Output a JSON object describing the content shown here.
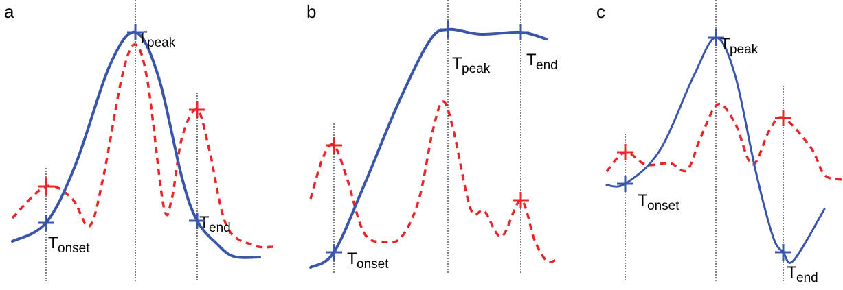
{
  "panels": [
    {
      "label": "a",
      "markers": [
        {
          "symbol": "T",
          "subscript": "onset"
        },
        {
          "symbol": "T",
          "subscript": "peak"
        },
        {
          "symbol": "T",
          "subscript": "end"
        }
      ]
    },
    {
      "label": "b",
      "markers": [
        {
          "symbol": "T",
          "subscript": "onset"
        },
        {
          "symbol": "T",
          "subscript": "peak"
        },
        {
          "symbol": "T",
          "subscript": "end"
        }
      ]
    },
    {
      "label": "c",
      "markers": [
        {
          "symbol": "T",
          "subscript": "onset"
        },
        {
          "symbol": "T",
          "subscript": "peak"
        },
        {
          "symbol": "T",
          "subscript": "end"
        }
      ]
    }
  ]
}
